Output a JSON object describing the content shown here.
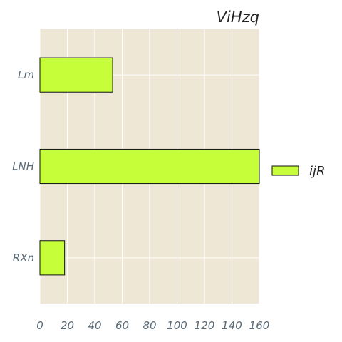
{
  "chart_data": {
    "type": "bar",
    "orientation": "horizontal",
    "title": "ViHzq",
    "xlabel": "",
    "ylabel": "",
    "categories": [
      "Lm",
      "LNH",
      "RXn"
    ],
    "series": [
      {
        "name": "ijR",
        "values": [
          53,
          160,
          18
        ]
      }
    ],
    "xlim": [
      0,
      160
    ],
    "x_ticks": [
      0,
      20,
      40,
      60,
      80,
      100,
      120,
      140,
      160
    ],
    "grid": true,
    "legend_position": "right",
    "colors": {
      "bar": "#c6ff3a",
      "bar_edge": "#111111",
      "plot_background": "#efe7d5",
      "grid": "#ffffff",
      "tick_text": "#5a6b78"
    }
  }
}
